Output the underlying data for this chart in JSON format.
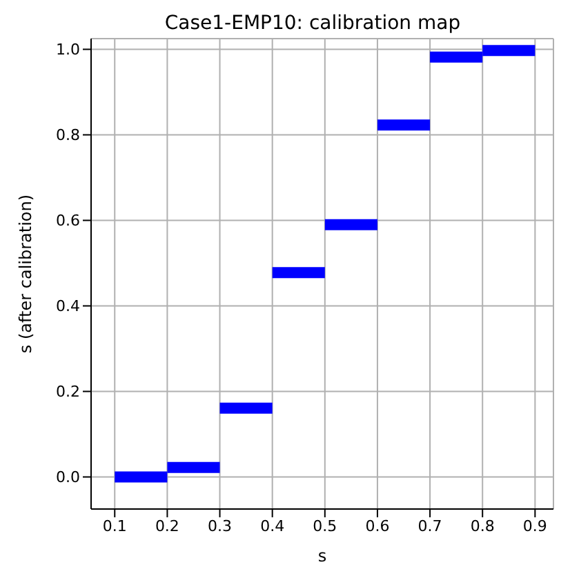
{
  "chart_data": {
    "type": "line",
    "title": "Case1-EMP10: calibration map",
    "xlabel": "s",
    "ylabel": "s (after calibration)",
    "xlim": [
      0.055,
      0.935
    ],
    "xticks": [
      0.1,
      0.2,
      0.3,
      0.4,
      0.5,
      0.6,
      0.7,
      0.8,
      0.9
    ],
    "ylim": [
      -0.075,
      1.025
    ],
    "yticks": [
      {
        "value": 0,
        "label": "0.0"
      },
      0.2,
      0.4,
      0.6,
      0.8,
      {
        "value": 1,
        "label": "1.0"
      }
    ],
    "grid": true,
    "series": [
      {
        "color": "#0000ff",
        "x": [
          0.1,
          0.2
        ],
        "values": [
          0.0,
          0.0
        ]
      },
      {
        "color": "#0000ff",
        "x": [
          0.2,
          0.3
        ],
        "values": [
          0.022,
          0.022
        ]
      },
      {
        "color": "#0000ff",
        "x": [
          0.3,
          0.4
        ],
        "values": [
          0.161,
          0.161
        ]
      },
      {
        "color": "#0000ff",
        "x": [
          0.4,
          0.5
        ],
        "values": [
          0.478,
          0.478
        ]
      },
      {
        "color": "#0000ff",
        "x": [
          0.5,
          0.6
        ],
        "values": [
          0.59,
          0.59
        ]
      },
      {
        "color": "#0000ff",
        "x": [
          0.6,
          0.7
        ],
        "values": [
          0.823,
          0.823
        ]
      },
      {
        "color": "#0000ff",
        "x": [
          0.7,
          0.8
        ],
        "values": [
          0.982,
          0.982
        ]
      },
      {
        "color": "#0000ff",
        "x": [
          0.8,
          0.9
        ],
        "values": [
          0.997,
          0.997
        ]
      }
    ]
  }
}
